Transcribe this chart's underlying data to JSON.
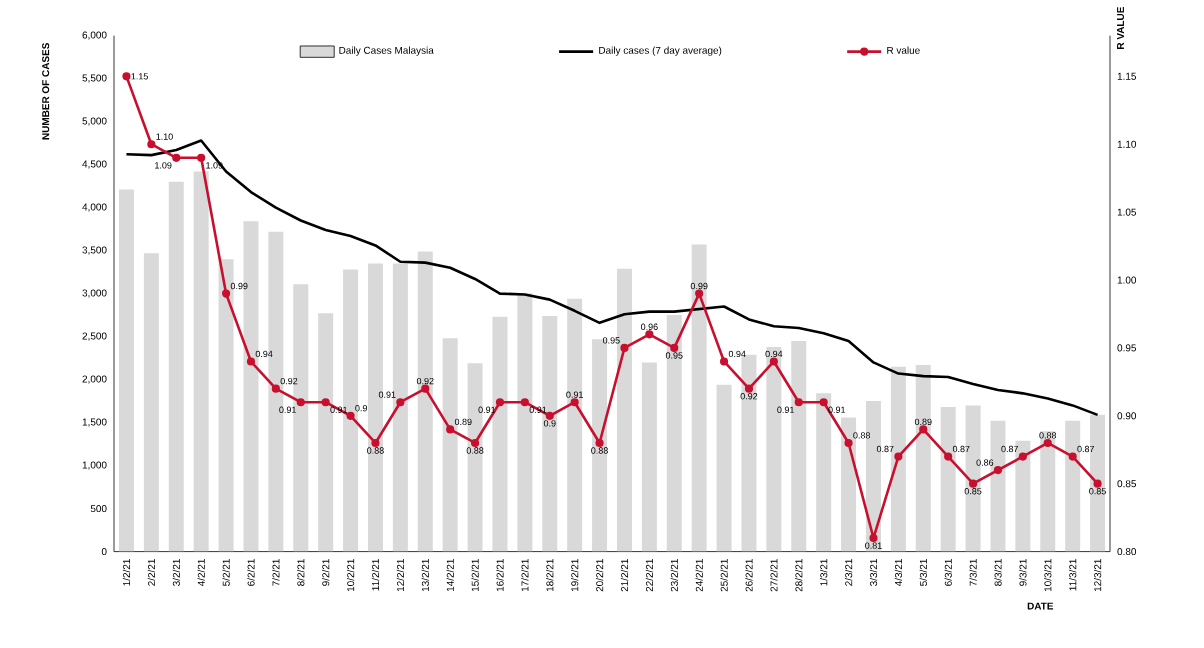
{
  "chart_data": {
    "type": "bar",
    "xlabel": "DATE",
    "ylabel": "NUMBER OF CASES",
    "y2label": "R VALUE",
    "categories": [
      "1/2/21",
      "2/2/21",
      "3/2/21",
      "4/2/21",
      "5/2/21",
      "6/2/21",
      "7/2/21",
      "8/2/21",
      "9/2/21",
      "10/2/21",
      "11/2/21",
      "12/2/21",
      "13/2/21",
      "14/2/21",
      "15/2/21",
      "16/2/21",
      "17/2/21",
      "18/2/21",
      "19/2/21",
      "20/2/21",
      "21/2/21",
      "22/2/21",
      "23/2/21",
      "24/2/21",
      "25/2/21",
      "26/2/21",
      "27/2/21",
      "28/2/21",
      "1/3/21",
      "2/3/21",
      "3/3/21",
      "4/3/21",
      "5/3/21",
      "6/3/21",
      "7/3/21",
      "8/3/21",
      "9/3/21",
      "10/3/21",
      "11/3/21",
      "12/3/21"
    ],
    "series": [
      {
        "name": "Daily Cases Malaysia",
        "color": "#d9d9d9",
        "values": [
          4210,
          3470,
          4300,
          4420,
          3400,
          3840,
          3720,
          3110,
          2770,
          3280,
          3350,
          3350,
          3490,
          2480,
          2190,
          2730,
          3000,
          2740,
          2940,
          2470,
          3290,
          2200,
          2750,
          3570,
          1940,
          2290,
          2380,
          2450,
          1840,
          1560,
          1750,
          2150,
          2170,
          1680,
          1700,
          1520,
          1290,
          1400,
          1520,
          1590
        ]
      },
      {
        "name": "Daily cases (7 day average)",
        "type": "line",
        "color": "#000000",
        "marker": "none",
        "values": [
          4620,
          4610,
          4670,
          4780,
          4420,
          4180,
          4000,
          3850,
          3740,
          3670,
          3560,
          3370,
          3360,
          3300,
          3170,
          3000,
          2990,
          2930,
          2800,
          2660,
          2760,
          2790,
          2790,
          2820,
          2850,
          2700,
          2620,
          2600,
          2540,
          2450,
          2200,
          2070,
          2040,
          2030,
          1950,
          1880,
          1840,
          1780,
          1700,
          1590
        ]
      },
      {
        "name": "R value",
        "type": "line",
        "axis": "y2",
        "color": "#c8102e",
        "marker": "circle",
        "values": [
          1.15,
          1.1,
          1.09,
          1.09,
          0.99,
          0.94,
          0.92,
          0.91,
          0.91,
          0.9,
          0.88,
          0.91,
          0.92,
          0.89,
          0.88,
          0.91,
          0.91,
          0.9,
          0.91,
          0.88,
          0.95,
          0.96,
          0.95,
          0.99,
          0.94,
          0.92,
          0.94,
          0.91,
          0.91,
          0.88,
          0.81,
          0.87,
          0.89,
          0.87,
          0.85,
          0.86,
          0.87,
          0.88,
          0.87,
          0.85
        ],
        "value_labels": [
          "1.15",
          "1.10",
          "1.09",
          "1.09",
          "0.99",
          "0.94",
          "0.92",
          "0.91",
          "0.91",
          "0.9",
          "0.88",
          "0.91",
          "0.92",
          "0.89",
          "0.88",
          "0.91",
          "0.91",
          "0.9",
          "0.91",
          "0.88",
          "0.95",
          "0.96",
          "0.95",
          "0.99",
          "0.94",
          "0.92",
          "0.94",
          "0.91",
          "0.91",
          "0.88",
          "0.81",
          "0.87",
          "0.89",
          "0.87",
          "0.85",
          "0.86",
          "0.87",
          "0.88",
          "0.87",
          "0.85"
        ]
      }
    ],
    "ylim": [
      0,
      6000
    ],
    "yticks": [
      0,
      500,
      {
        "value": 1000,
        "label": "1,000"
      },
      {
        "value": 1500,
        "label": "1,500"
      },
      {
        "value": 2000,
        "label": "2,000"
      },
      {
        "value": 2500,
        "label": "2,500"
      },
      {
        "value": 3000,
        "label": "3,000"
      },
      {
        "value": 3500,
        "label": "3,500"
      },
      {
        "value": 4000,
        "label": "4,000"
      },
      {
        "value": 4500,
        "label": "4,500"
      },
      {
        "value": 5000,
        "label": "5,000"
      },
      {
        "value": 5500,
        "label": "5,500"
      },
      {
        "value": 6000,
        "label": "6,000"
      }
    ],
    "y2lim": [
      0.8,
      1.18
    ],
    "y2ticks": [
      {
        "value": 0.8,
        "label": "0.80"
      },
      {
        "value": 0.85,
        "label": "0.85"
      },
      {
        "value": 0.9,
        "label": "0.90"
      },
      {
        "value": 0.95,
        "label": "0.95"
      },
      {
        "value": 1.0,
        "label": "1.00"
      },
      {
        "value": 1.05,
        "label": "1.05"
      },
      {
        "value": 1.1,
        "label": "1.10"
      },
      {
        "value": 1.15,
        "label": "1.15"
      }
    ],
    "legend": "top",
    "grid": false
  }
}
